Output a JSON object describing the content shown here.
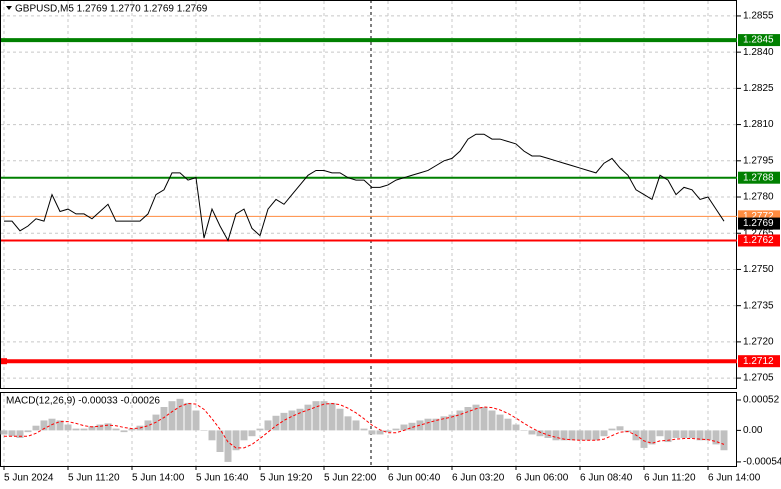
{
  "chart_data": [
    {
      "type": "line",
      "title": "GBPUSD,M5  1.2769 1.2770 1.2769 1.2769",
      "categories": [
        "5 Jun 2024",
        null,
        null,
        null,
        null,
        null,
        null,
        null,
        "5 Jun 11:20",
        null,
        null,
        null,
        null,
        null,
        null,
        null,
        "5 Jun 14:00",
        null,
        null,
        null,
        null,
        null,
        null,
        null,
        "5 Jun 16:40",
        null,
        null,
        null,
        null,
        null,
        null,
        null,
        "5 Jun 19:20",
        null,
        null,
        null,
        null,
        null,
        null,
        null,
        "5 Jun 22:00",
        null,
        null,
        null,
        null,
        null,
        null,
        null,
        "6 Jun 00:40",
        null,
        null,
        null,
        null,
        null,
        null,
        null,
        "6 Jun 03:20",
        null,
        null,
        null,
        null,
        null,
        null,
        null,
        "6 Jun 06:00",
        null,
        null,
        null,
        null,
        null,
        null,
        null,
        "6 Jun 08:40",
        null,
        null,
        null,
        null,
        null,
        null,
        null,
        "6 Jun 11:20",
        null,
        null,
        null,
        null,
        null,
        null,
        null,
        "6 Jun 14:00",
        null,
        null
      ],
      "values": [
        1.277,
        1.277,
        1.2766,
        1.2768,
        1.2771,
        1.277,
        1.2781,
        1.2774,
        1.2775,
        1.2773,
        1.2773,
        1.2771,
        1.2774,
        1.2777,
        1.277,
        1.277,
        1.277,
        1.277,
        1.2773,
        1.2781,
        1.2783,
        1.279,
        1.279,
        1.2787,
        1.2788,
        1.2763,
        1.2775,
        1.2768,
        1.2762,
        1.2773,
        1.2775,
        1.2767,
        1.2764,
        1.2775,
        1.2779,
        1.2777,
        1.2781,
        1.2785,
        1.2789,
        1.2791,
        1.2791,
        1.279,
        1.279,
        1.2788,
        1.2787,
        1.2787,
        1.2784,
        1.2784,
        1.2785,
        1.2787,
        1.2788,
        1.2789,
        1.279,
        1.2791,
        1.2793,
        1.2795,
        1.2796,
        1.2799,
        1.2804,
        1.2806,
        1.2806,
        1.2804,
        1.2804,
        1.2803,
        1.2802,
        1.2799,
        1.2797,
        1.2797,
        1.2796,
        1.2795,
        1.2794,
        1.2793,
        1.2792,
        1.2791,
        1.279,
        1.2794,
        1.2796,
        1.2792,
        1.2789,
        1.2783,
        1.2781,
        1.2779,
        1.2789,
        1.2787,
        1.2781,
        1.2784,
        1.2783,
        1.2779,
        1.278,
        1.2775,
        1.277
      ],
      "color": "#000000",
      "ylim": [
        1.27009,
        1.28616
      ],
      "yticks": [
        1.2855,
        {
          "value": 1.284,
          "label": "1.2840"
        },
        1.2825,
        {
          "value": 1.281,
          "label": "1.2810"
        },
        1.2795,
        {
          "value": 1.278,
          "label": "1.2780"
        },
        1.2765,
        {
          "value": 1.275,
          "label": "1.2750"
        },
        1.2735,
        {
          "value": 1.272,
          "label": "1.2720"
        },
        1.2705
      ],
      "grid": true,
      "levels": [
        {
          "value": 1.2845,
          "color": "#008000"
        },
        {
          "value": 1.2788,
          "color": "#008000"
        },
        {
          "value": 1.2762,
          "color": "#ff0000"
        },
        {
          "value": 1.2712,
          "color": "#ff0000"
        }
      ],
      "marker_line": {
        "value": 1.2772,
        "color": "#ff8c40"
      },
      "last_price": 1.2769
    },
    {
      "type": "macd",
      "title": "MACD(12,26,9) -0.00033 -0.00026",
      "values": [
        -7e-05,
        -0.0001,
        -0.00013,
        -3e-05,
        8e-05,
        0.00017,
        0.0002,
        0.00017,
        0.0001,
        3e-05,
        3e-05,
        7e-05,
        0.0001,
        0.00012,
        3e-05,
        -3e-05,
        3e-05,
        8e-05,
        0.00017,
        0.00027,
        0.0004,
        0.0005,
        0.00054,
        0.00047,
        0.00034,
        0,
        -0.00017,
        -0.00037,
        -0.00054,
        -0.00034,
        -0.00017,
        -0.0001,
        3e-05,
        0.00017,
        0.00025,
        0.0003,
        0.00034,
        0.00037,
        0.00044,
        0.0005,
        0.0005,
        0.00047,
        0.00037,
        0.00024,
        0.00017,
        3e-05,
        -7e-05,
        -7e-05,
        -3e-05,
        3e-05,
        0.0001,
        0.00013,
        0.00017,
        0.0002,
        0.0002,
        0.00024,
        0.00027,
        0.00034,
        0.0004,
        0.00044,
        0.0004,
        0.00034,
        0.00027,
        0.0002,
        0.0001,
        0,
        -7e-05,
        -0.0001,
        -0.00013,
        -0.00017,
        -0.00017,
        -0.00017,
        -0.00017,
        -0.00017,
        -0.00017,
        -0.0001,
        3e-05,
        7e-05,
        -3e-05,
        -0.00017,
        -0.0003,
        -0.00024,
        -0.0001,
        -0.0002,
        -0.00013,
        -0.00013,
        -0.00013,
        -0.00017,
        -0.00017,
        -0.00024,
        -0.00034
      ],
      "signal": [
        -0.0001,
        -0.0001,
        -0.0001,
        -0.0001,
        -5e-05,
        3e-05,
        0.0001,
        0.00015,
        0.00015,
        0.00012,
        8e-05,
        6e-05,
        7e-05,
        9e-05,
        8e-05,
        5e-05,
        3e-05,
        4e-05,
        8e-05,
        0.00014,
        0.00022,
        0.00032,
        0.00041,
        0.00046,
        0.00045,
        0.00036,
        0.0002,
        2e-05,
        -0.0002,
        -0.0003,
        -0.0003,
        -0.00024,
        -0.00014,
        -3e-05,
        8e-05,
        0.00017,
        0.00024,
        0.0003,
        0.00035,
        0.0004,
        0.00045,
        0.00046,
        0.00044,
        0.00038,
        0.0003,
        0.0002,
        9e-05,
        1e-05,
        -4e-05,
        -4e-05,
        0.0,
        5e-05,
        9e-05,
        0.00013,
        0.00017,
        0.0002,
        0.00023,
        0.00027,
        0.00032,
        0.00037,
        0.0004,
        0.00039,
        0.00035,
        0.00029,
        0.00021,
        0.00012,
        4e-05,
        -3e-05,
        -8e-05,
        -0.00012,
        -0.00015,
        -0.00016,
        -0.00017,
        -0.00017,
        -0.00017,
        -0.00015,
        -9e-05,
        -3e-05,
        -2e-05,
        -8e-05,
        -0.00018,
        -0.00022,
        -0.00018,
        -0.00017,
        -0.00015,
        -0.00014,
        -0.00014,
        -0.00015,
        -0.00016,
        -0.00019,
        -0.00024
      ],
      "color": "#c0c0c0",
      "signal_color": "#ff0000",
      "ylim": [
        -0.00061,
        0.00064
      ],
      "yticks": [
        0.00052,
        {
          "value": 0,
          "label": "0.00"
        },
        -0.00054
      ]
    }
  ]
}
